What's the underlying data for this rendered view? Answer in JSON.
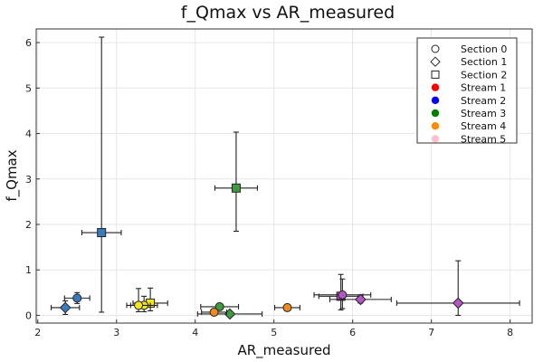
{
  "chart_data": {
    "type": "scatter",
    "title": "f_Qmax vs AR_measured",
    "xlabel": "AR_measured",
    "ylabel": "f_Qmax",
    "xlim": [
      1.98,
      8.28
    ],
    "ylim": [
      -0.17,
      6.3
    ],
    "xticks": [
      2,
      3,
      4,
      5,
      6,
      7,
      8
    ],
    "yticks": [
      0,
      1,
      2,
      3,
      4,
      5,
      6
    ],
    "grid": true,
    "legend_position": "top-right",
    "legend": [
      {
        "label": "Section 0",
        "kind": "marker",
        "shape": "circle"
      },
      {
        "label": "Section 1",
        "kind": "marker",
        "shape": "diamond"
      },
      {
        "label": "Section 2",
        "kind": "marker",
        "shape": "square"
      },
      {
        "label": "Stream 1",
        "kind": "color",
        "color": "#ff0000"
      },
      {
        "label": "Stream 2",
        "kind": "color",
        "color": "#0000ff"
      },
      {
        "label": "Stream 3",
        "kind": "color",
        "color": "#008000"
      },
      {
        "label": "Stream 4",
        "kind": "color",
        "color": "#ff8c00"
      },
      {
        "label": "Stream 5",
        "kind": "color",
        "color": "#ffc0cb"
      }
    ],
    "points": [
      {
        "x": 2.81,
        "y": 1.82,
        "xerr": 0.25,
        "yerr_lo": 1.75,
        "yerr_hi": 4.3,
        "shape": "square",
        "color": "#3a7bbf"
      },
      {
        "x": 2.5,
        "y": 0.38,
        "xerr": 0.16,
        "yerr_lo": 0.12,
        "yerr_hi": 0.12,
        "shape": "circle",
        "color": "#3a7bbf"
      },
      {
        "x": 2.35,
        "y": 0.17,
        "xerr": 0.18,
        "yerr_lo": 0.15,
        "yerr_hi": 0.15,
        "shape": "diamond",
        "color": "#3a7bbf"
      },
      {
        "x": 3.43,
        "y": 0.27,
        "xerr": 0.22,
        "yerr_lo": 0.17,
        "yerr_hi": 0.33,
        "shape": "square",
        "color": "#f5e61c"
      },
      {
        "x": 3.35,
        "y": 0.22,
        "xerr": 0.17,
        "yerr_lo": 0.14,
        "yerr_hi": 0.2,
        "shape": "circle",
        "color": "#f5e61c"
      },
      {
        "x": 3.28,
        "y": 0.22,
        "xerr": 0.15,
        "yerr_lo": 0.14,
        "yerr_hi": 0.37,
        "shape": "circle",
        "color": "#f5e61c"
      },
      {
        "x": 4.52,
        "y": 2.8,
        "xerr": 0.27,
        "yerr_lo": 0.95,
        "yerr_hi": 1.23,
        "shape": "square",
        "color": "#3f9b3f"
      },
      {
        "x": 4.31,
        "y": 0.19,
        "xerr": 0.24,
        "yerr_lo": 0.06,
        "yerr_hi": 0.06,
        "shape": "circle",
        "color": "#3f9b3f"
      },
      {
        "x": 4.44,
        "y": 0.03,
        "xerr": 0.41,
        "yerr_lo": 0.02,
        "yerr_hi": 0.02,
        "shape": "diamond",
        "color": "#3f9b3f"
      },
      {
        "x": 4.24,
        "y": 0.07,
        "xerr": 0.16,
        "yerr_lo": 0.03,
        "yerr_hi": 0.03,
        "shape": "circle",
        "color": "#f08a1c"
      },
      {
        "x": 5.17,
        "y": 0.17,
        "xerr": 0.16,
        "yerr_lo": 0.05,
        "yerr_hi": 0.05,
        "shape": "circle",
        "color": "#f08a1c"
      },
      {
        "x": 5.85,
        "y": 0.42,
        "xerr": 0.28,
        "yerr_lo": 0.3,
        "yerr_hi": 0.48,
        "shape": "square",
        "color": "#b455c4"
      },
      {
        "x": 5.87,
        "y": 0.45,
        "xerr": 0.36,
        "yerr_lo": 0.3,
        "yerr_hi": 0.35,
        "shape": "circle",
        "color": "#b455c4"
      },
      {
        "x": 6.1,
        "y": 0.35,
        "xerr": 0.39,
        "yerr_lo": 0.08,
        "yerr_hi": 0.08,
        "shape": "diamond",
        "color": "#b455c4"
      },
      {
        "x": 7.34,
        "y": 0.27,
        "xerr": 0.78,
        "yerr_lo": 0.27,
        "yerr_hi": 0.93,
        "shape": "diamond",
        "color": "#b455c4"
      }
    ]
  }
}
